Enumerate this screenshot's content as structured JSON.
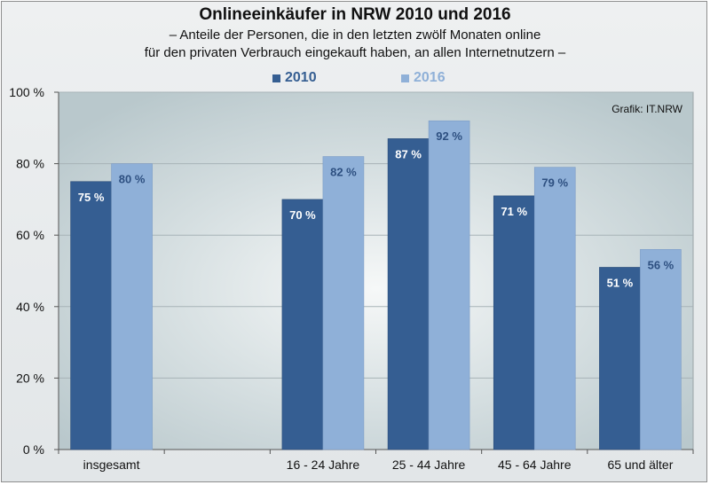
{
  "chart_data": {
    "type": "bar",
    "title": "Onlineeinkäufer in NRW  2010 und 2016",
    "subtitle": [
      "– Anteile der Personen, die in den letzten zwölf Monaten online",
      "für den privaten Verbrauch eingekauft haben, an allen Internetnutzern –"
    ],
    "categories": [
      "insgesamt",
      "",
      "16 - 24 Jahre",
      "25 - 44 Jahre",
      "45 - 64 Jahre",
      "65 und älter"
    ],
    "series": [
      {
        "name": "2010",
        "values": [
          75,
          null,
          70,
          87,
          71,
          51
        ],
        "labels": [
          "75 %",
          "",
          "70 %",
          "87 %",
          "71 %",
          "51 %"
        ],
        "color": "#355e92"
      },
      {
        "name": "2016",
        "values": [
          80,
          null,
          82,
          92,
          79,
          56
        ],
        "labels": [
          "80 %",
          "",
          "82 %",
          "92 %",
          "79 %",
          "56 %"
        ],
        "color": "#8fb0d8"
      }
    ],
    "ylim": [
      0,
      100
    ],
    "yticks": [
      0,
      20,
      40,
      60,
      80,
      100
    ],
    "ytick_labels": [
      "0 %",
      "20 %",
      "40 %",
      "60 %",
      "80 %",
      "100 %"
    ],
    "grid": true,
    "legend": "top-center",
    "credit": "Grafik: IT.NRW"
  }
}
